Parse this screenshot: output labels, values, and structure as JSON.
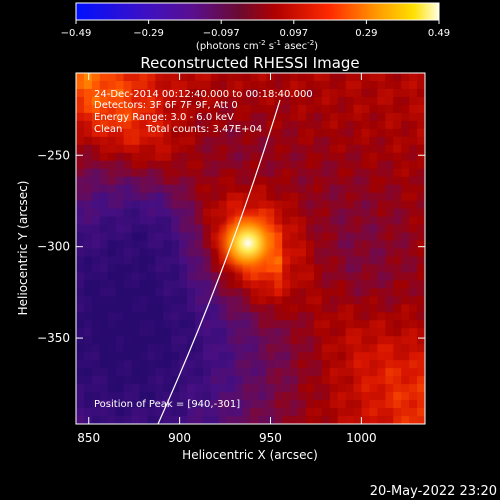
{
  "chart_data": {
    "type": "heatmap",
    "title": "Reconstructed RHESSI Image",
    "xlabel": "Heliocentric X (arcsec)",
    "ylabel": "Heliocentric Y (arcsec)",
    "xlim": [
      843,
      1035
    ],
    "ylim": [
      -397,
      -205
    ],
    "x_ticks": [
      850,
      900,
      950,
      1000
    ],
    "y_ticks": [
      -250,
      -300,
      -350
    ],
    "colorbar": {
      "label": "(photons cm",
      "label_sup1": "-2",
      "label_mid1": " s",
      "label_sup2": "-1",
      "label_mid2": " asec",
      "label_sup3": "-2",
      "label_end": ")",
      "range": [
        -0.49,
        0.49
      ],
      "ticks": [
        "-0.49",
        "-0.29",
        "-0.097",
        "0.097",
        "0.29",
        "0.49"
      ],
      "colormap": "blue-purple-red-yellow-white"
    },
    "annotations": {
      "time": "24-Dec-2014 00:12:40.000 to 00:18:40.000",
      "detectors": "Detectors: 3F 6F 7F 9F, Att 0",
      "energy": "Energy Range: 3.0 - 6.0 keV",
      "clean": "Clean",
      "counts": "Total counts: 3.47E+04",
      "peak": "Position of Peak = [940,-301]"
    },
    "peak": [
      940,
      -301
    ],
    "footer_date": "20-May-2022 23:20"
  }
}
